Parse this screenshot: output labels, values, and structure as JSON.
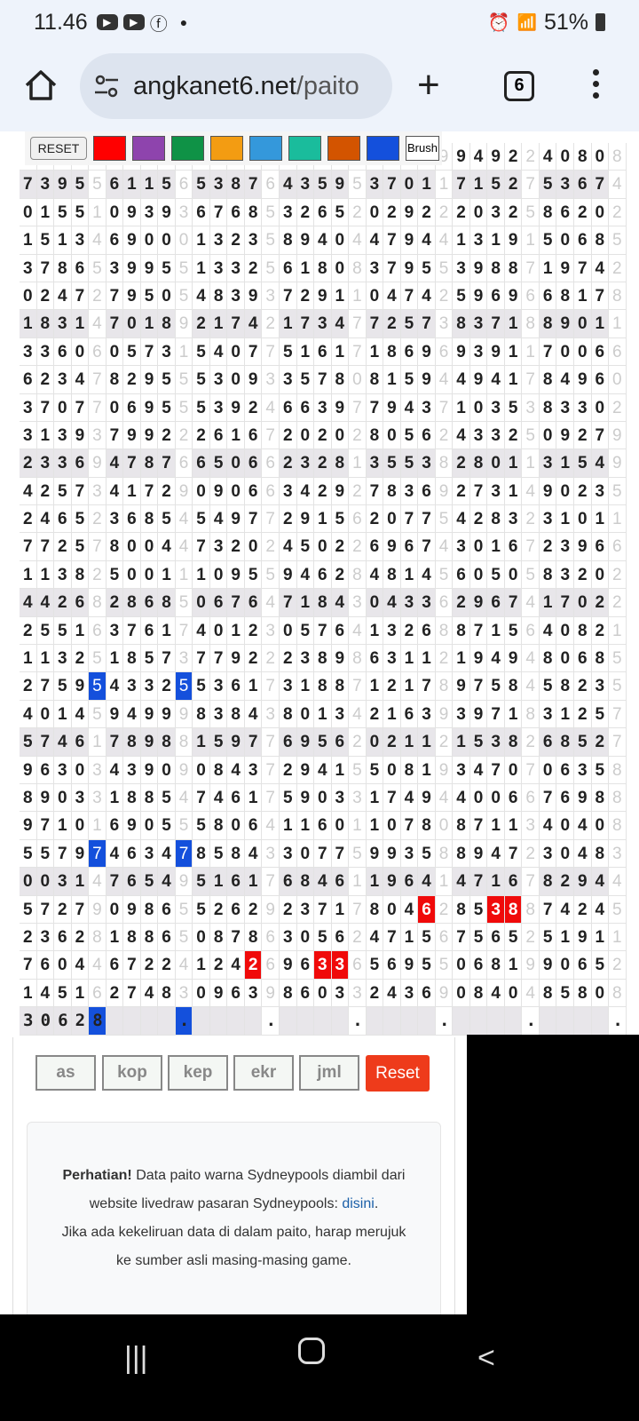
{
  "status": {
    "time": "11.46",
    "battery": "51%",
    "notif_icons": [
      "youtube-icon",
      "youtube-icon",
      "facebook-icon",
      "dot-icon"
    ]
  },
  "browser": {
    "domain": "angkanet6.net",
    "path": "/paito",
    "tab_count": "6"
  },
  "toolbar": {
    "reset_label": "RESET",
    "brush_label": "Brush",
    "colors": [
      "#ff0000",
      "#8e44ad",
      "#0f9246",
      "#f39c12",
      "#3498db",
      "#1abc9c",
      "#d35400",
      "#1450dc"
    ]
  },
  "grid": {
    "rows": [
      "                        99492240808",
      "73955611565387643595370117152753674",
      "01551093936768532652029222032586202",
      "15134690001323589404479441319150685",
      "37865399551332561808379553988719742",
      "02472795054839372911047425969668178",
      "18314701892174217347725738371889011",
      "33606057315407751617186969391170066",
      "62347829555309335780815944941784960",
      "37077069555392466397794371035383302",
      "31393799222616720202805624332509279",
      "23369478766506623281355382801131549",
      "42573417290906634292783692731490235",
      "24652368545497729156207754283231011",
      "77257800447320245022696743016723966",
      "11382500111095594628481456050583202",
      "44268286850676471843043362967417022",
      "25516376174012305764132688715640821",
      "11325185737792223898631121949480685",
      "27595433255361731887121789758458235",
      "40145949998384380134216393971831257",
      "57461789881597769562021121538268527",
      "96303439090843729415508193470706358",
      "89033188547461759033174944006676988",
      "97101690555806411601107808711340408",
      "55797463478584330775993588947230483",
      "00314765495161768461196414716782944",
      "57279098655262923717804628538874245",
      "23628188650878630562471567565251911",
      "76044672241242696336569550681990652",
      "14516274830963986033243690840485808",
      "30628    .    .    .    .    .    ."
    ],
    "shaded_rows": [
      1,
      6,
      11,
      16,
      21,
      26,
      31
    ],
    "highlights": [
      {
        "row": 19,
        "col": 4,
        "color": "blue"
      },
      {
        "row": 19,
        "col": 9,
        "color": "blue"
      },
      {
        "row": 25,
        "col": 4,
        "color": "blue"
      },
      {
        "row": 25,
        "col": 9,
        "color": "blue"
      },
      {
        "row": 27,
        "col": 23,
        "color": "red"
      },
      {
        "row": 27,
        "col": 27,
        "color": "red"
      },
      {
        "row": 27,
        "col": 28,
        "color": "red"
      },
      {
        "row": 29,
        "col": 13,
        "color": "red"
      },
      {
        "row": 29,
        "col": 17,
        "color": "red"
      },
      {
        "row": 29,
        "col": 18,
        "color": "red"
      },
      {
        "row": 31,
        "col": 3,
        "color": "red"
      },
      {
        "row": 31,
        "col": 4,
        "color": "blue"
      },
      {
        "row": 31,
        "col": 7,
        "color": "red"
      },
      {
        "row": 31,
        "col": 8,
        "color": "red"
      },
      {
        "row": 31,
        "col": 9,
        "color": "blue"
      }
    ]
  },
  "filters": {
    "buttons": [
      "as",
      "kop",
      "kep",
      "ekr",
      "jml"
    ],
    "reset_label": "Reset"
  },
  "notice": {
    "bold": "Perhatian!",
    "text1": " Data paito warna Sydneypools diambil dari website livedraw pasaran Sydneypools: ",
    "link": "disini",
    "text2": ".",
    "text3": "Jika ada kekeliruan data di dalam paito, harap merujuk ke sumber asli masing-masing game."
  }
}
